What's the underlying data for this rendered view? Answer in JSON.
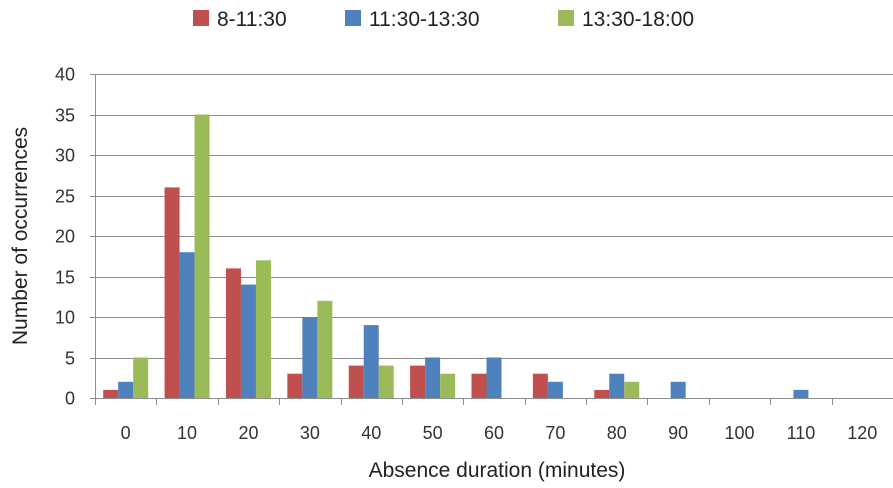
{
  "chart_data": {
    "type": "bar",
    "categories": [
      "0",
      "10",
      "20",
      "30",
      "40",
      "50",
      "60",
      "70",
      "80",
      "90",
      "100",
      "110",
      "120"
    ],
    "series": [
      {
        "name": "8-11:30",
        "color": "#c0504d",
        "values": [
          1,
          26,
          16,
          3,
          4,
          4,
          3,
          3,
          1,
          0,
          0,
          0,
          0
        ]
      },
      {
        "name": "11:30-13:30",
        "color": "#4f81bd",
        "values": [
          2,
          18,
          14,
          10,
          9,
          5,
          5,
          2,
          3,
          2,
          0,
          1,
          0
        ]
      },
      {
        "name": "13:30-18:00",
        "color": "#9bbb59",
        "values": [
          5,
          35,
          17,
          12,
          4,
          3,
          0,
          0,
          2,
          0,
          0,
          0,
          0
        ]
      }
    ],
    "xlabel": "Absence duration (minutes)",
    "ylabel": "Number of occurrences",
    "ylim": [
      0,
      40
    ],
    "yticks": [
      0,
      5,
      10,
      15,
      20,
      25,
      30,
      35,
      40
    ],
    "grid": true,
    "legend_position": "top"
  }
}
